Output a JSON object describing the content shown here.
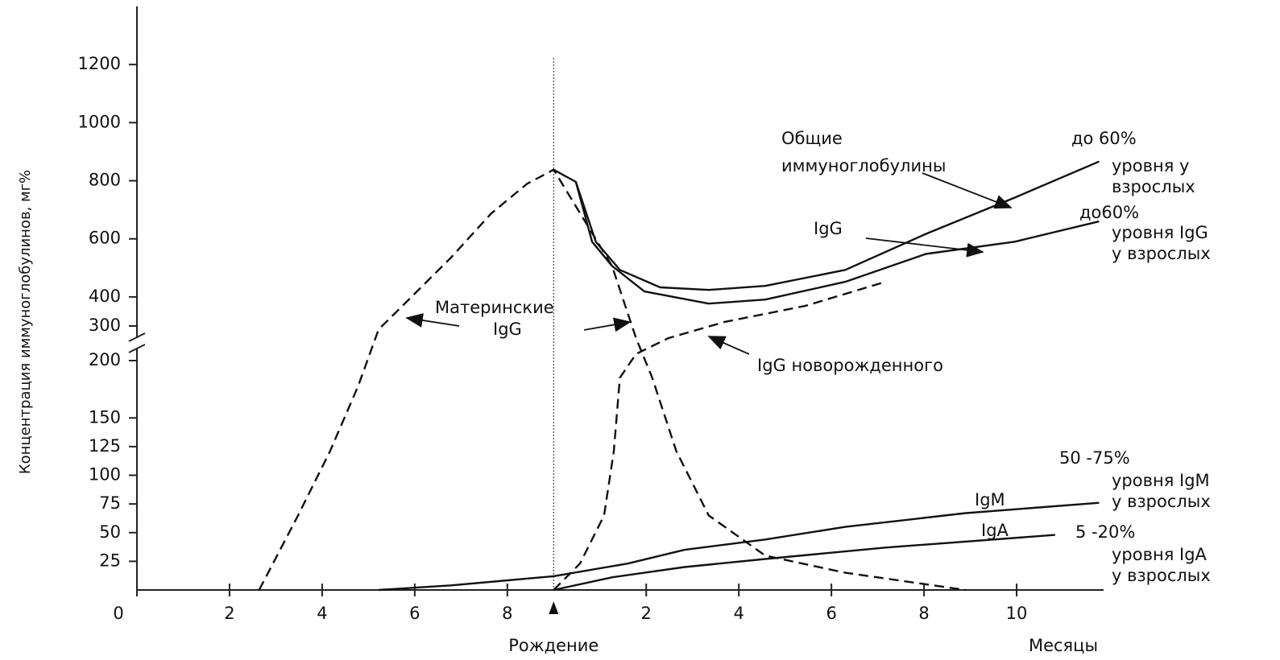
{
  "chart_data": {
    "type": "line",
    "ylabel": "Концентрация иммуноглобулинов, мг%",
    "xlabel": "Месяцы",
    "birth": {
      "x": 9,
      "label": "Рождение"
    },
    "xlim": [
      0,
      21
    ],
    "xticks": [
      0,
      2,
      4,
      6,
      8,
      {
        "value": 11,
        "label": "2"
      },
      {
        "value": 13,
        "label": "4"
      },
      {
        "value": 15,
        "label": "6"
      },
      {
        "value": 17,
        "label": "8"
      },
      {
        "value": 19,
        "label": "10"
      }
    ],
    "ylim": [
      0,
      1400
    ],
    "y_break": [
      200,
      300
    ],
    "yticks": [
      25,
      50,
      75,
      100,
      125,
      150,
      200,
      300,
      400,
      600,
      800,
      1000,
      1200
    ],
    "series": [
      {
        "color": "#111111",
        "dashed": true,
        "x": [
          2.64,
          3.48,
          4.17,
          4.78,
          5.22,
          5.74,
          6.78,
          7.65,
          8.43,
          9.0,
          10.26,
          10.78,
          11.13,
          11.65,
          12.35,
          13.57,
          15.3,
          17.9
        ],
        "values": [
          0,
          65,
          121,
          178,
          290,
          370,
          535,
          687,
          790,
          838,
          507,
          265,
          185,
          121,
          65,
          30,
          15,
          0
        ]
      },
      {
        "color": "#111111",
        "dashed": false,
        "x": [
          9.0,
          9.48,
          9.91,
          10.43,
          11.3,
          12.35,
          13.57,
          15.3,
          17.04,
          18.96,
          20.78
        ],
        "values": [
          838,
          796,
          590,
          493,
          433,
          424,
          438,
          493,
          617,
          742,
          866
        ]
      },
      {
        "color": "#111111",
        "dashed": false,
        "x": [
          9.48,
          9.83,
          10.26,
          10.96,
          12.35,
          13.57,
          15.3,
          17.04,
          18.96,
          20.78
        ],
        "values": [
          796,
          590,
          507,
          419,
          377,
          391,
          452,
          548,
          590,
          660
        ]
      },
      {
        "color": "#111111",
        "dashed": true,
        "x": [
          9.0,
          9.57,
          10.09,
          10.3,
          10.43,
          10.78,
          11.48,
          12.7,
          14.43,
          16.17
        ],
        "values": [
          0,
          23,
          65,
          121,
          185,
          219,
          265,
          314,
          369,
          452
        ]
      },
      {
        "color": "#111111",
        "dashed": false,
        "x": [
          5.22,
          6.78,
          9.0,
          10.6,
          11.83,
          13.57,
          15.3,
          17.9,
          20.78
        ],
        "values": [
          0,
          4,
          12,
          23,
          35,
          44,
          55,
          67,
          76
        ]
      },
      {
        "color": "#111111",
        "dashed": false,
        "x": [
          9.0,
          10.26,
          11.83,
          13.57,
          16.17,
          19.83
        ],
        "values": [
          0,
          11,
          20,
          27,
          37,
          48
        ]
      }
    ],
    "annotations": [
      "Общие",
      "иммуноглобулины",
      "до 60%",
      "уровня у",
      "взрослых",
      "до60%",
      "уровня IgG",
      "у взрослых",
      "IgG",
      "Материнские",
      "IgG",
      "IgG новорожденного",
      "50 -75%",
      "уровня IgM",
      "у взрослых",
      "IgM",
      "IgA",
      "5 -20%",
      "уровня IgA",
      "у взрослых"
    ]
  }
}
